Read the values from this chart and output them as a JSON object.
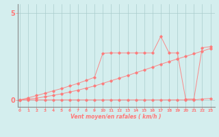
{
  "background_color": "#d4eeee",
  "line_color": "#ff7777",
  "grid_color": "#aacccc",
  "axis_color": "#888888",
  "xlabel": "Vent moyen/en rafales ( km/h )",
  "ytick_labels": [
    "0",
    "5"
  ],
  "ytick_values": [
    0,
    5
  ],
  "xticks": [
    0,
    1,
    2,
    3,
    4,
    5,
    6,
    7,
    8,
    9,
    10,
    11,
    12,
    13,
    14,
    15,
    16,
    17,
    18,
    19,
    20,
    21,
    22,
    23
  ],
  "xlim": [
    -0.3,
    23.5
  ],
  "ylim": [
    -0.4,
    5.5
  ],
  "x": [
    0,
    1,
    2,
    3,
    4,
    5,
    6,
    7,
    8,
    9,
    10,
    11,
    12,
    13,
    14,
    15,
    16,
    17,
    18,
    19,
    20,
    21,
    22,
    23
  ],
  "line1_y": [
    0,
    0,
    0,
    0,
    0,
    0,
    0,
    0,
    0,
    0,
    0,
    0,
    0,
    0,
    0,
    0,
    0,
    0,
    0,
    0,
    0,
    0,
    0.05,
    0.08
  ],
  "line2_y": [
    0,
    0.05,
    0.1,
    0.18,
    0.26,
    0.35,
    0.45,
    0.56,
    0.68,
    0.8,
    0.95,
    1.1,
    1.25,
    1.4,
    1.56,
    1.72,
    1.88,
    2.05,
    2.2,
    2.35,
    2.5,
    2.65,
    2.8,
    2.95
  ],
  "line3_y": [
    0,
    0.12,
    0.25,
    0.38,
    0.52,
    0.65,
    0.8,
    0.95,
    1.12,
    1.3,
    2.68,
    2.7,
    2.7,
    2.7,
    2.7,
    2.7,
    2.7,
    3.65,
    2.7,
    2.7,
    0.05,
    0.05,
    3.0,
    3.05
  ]
}
